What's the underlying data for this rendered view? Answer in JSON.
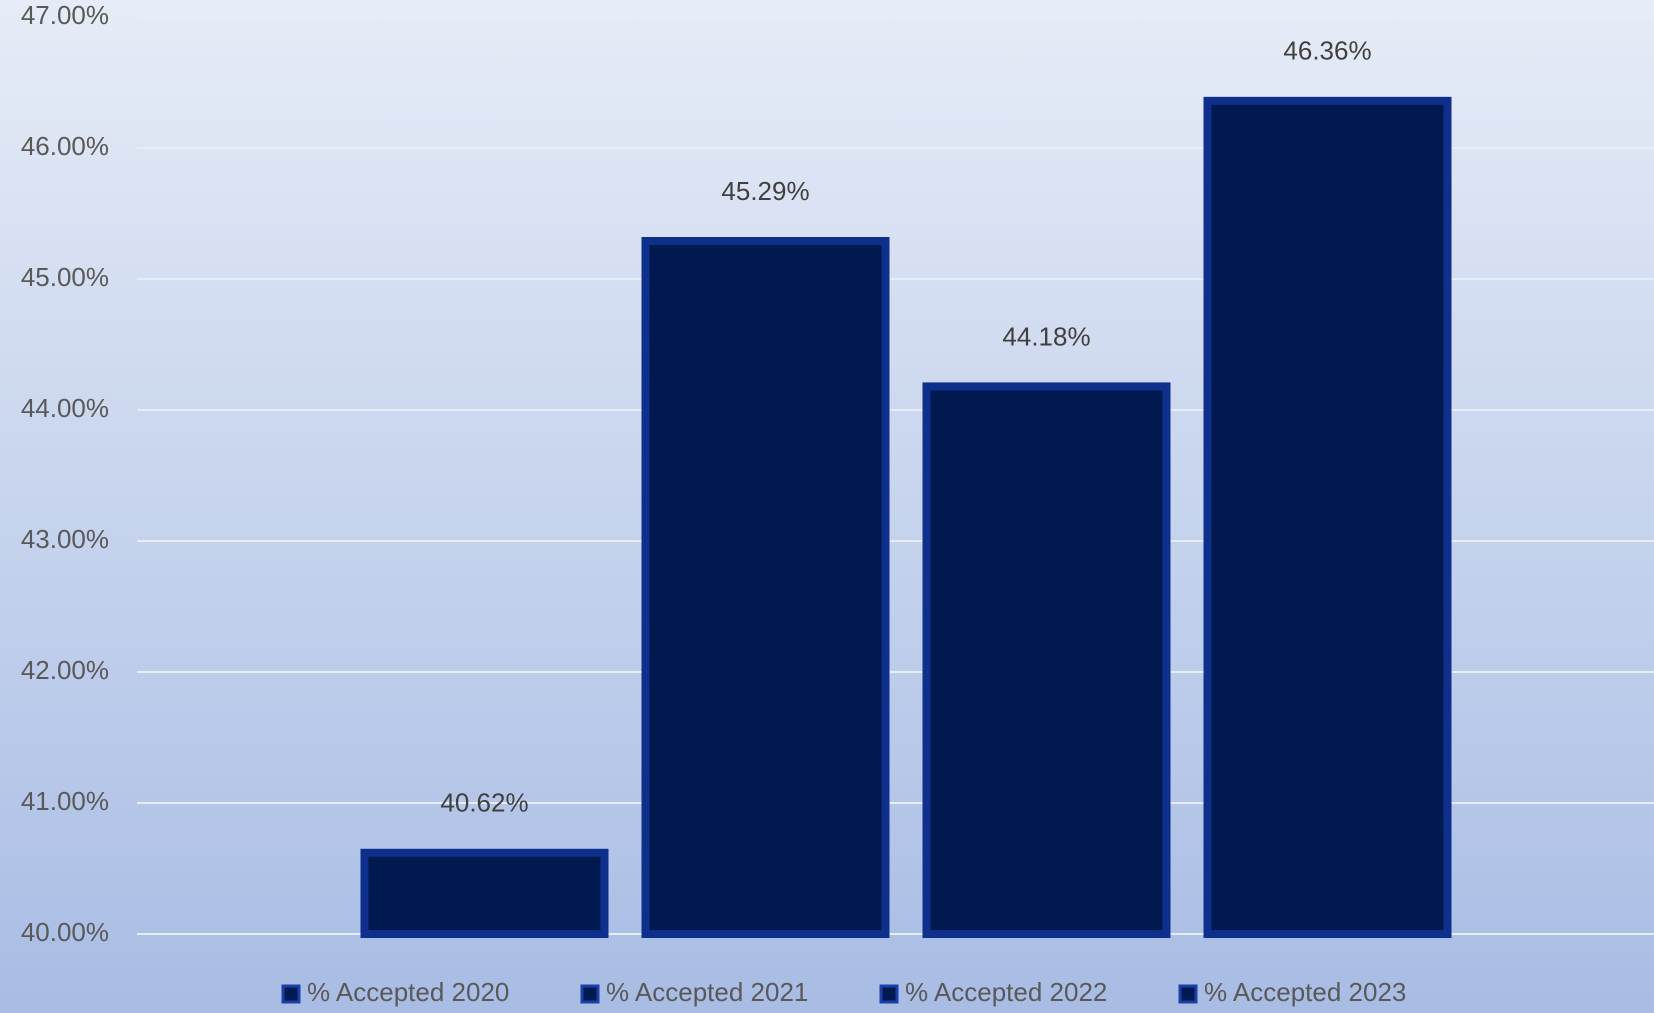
{
  "chart_data": {
    "type": "bar",
    "categories": [
      null
    ],
    "series": [
      {
        "name": "% Accepted 2020",
        "color": "#001a50",
        "values": [
          40.62
        ],
        "value_labels": [
          "40.62%"
        ]
      },
      {
        "name": "% Accepted 2021",
        "color": "#001a50",
        "values": [
          45.29
        ],
        "value_labels": [
          "45.29%"
        ]
      },
      {
        "name": "% Accepted 2022",
        "color": "#001a50",
        "values": [
          44.18
        ],
        "value_labels": [
          "44.18%"
        ]
      },
      {
        "name": "% Accepted 2023",
        "color": "#001a50",
        "values": [
          46.36
        ],
        "value_labels": [
          "46.36%"
        ]
      }
    ],
    "ylim": [
      40,
      47
    ],
    "yticks": [
      {
        "value": 40,
        "label": "40.00%"
      },
      {
        "value": 41,
        "label": "41.00%"
      },
      {
        "value": 42,
        "label": "42.00%"
      },
      {
        "value": 43,
        "label": "43.00%"
      },
      {
        "value": 44,
        "label": "44.00%"
      },
      {
        "value": 45,
        "label": "45.00%"
      },
      {
        "value": 46,
        "label": "46.00%"
      },
      {
        "value": 47,
        "label": "47.00%"
      }
    ],
    "grid": true,
    "legend": "bottom"
  }
}
